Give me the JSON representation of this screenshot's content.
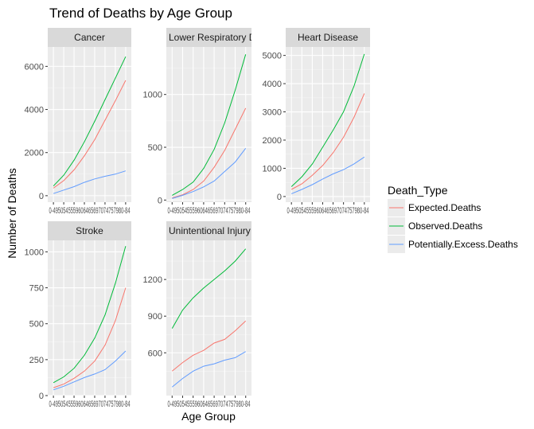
{
  "chart_data": {
    "type": "line",
    "title": "Trend of Deaths by Age Group",
    "xlabel": "Age Group",
    "ylabel": "Number of Deaths",
    "categories": [
      "0-49",
      "50-54",
      "55-59",
      "60-64",
      "65-69",
      "70-74",
      "75-79",
      "80-84"
    ],
    "legend": {
      "title": "Death_Type",
      "position": "right",
      "entries": [
        "Expected.Deaths",
        "Observed.Deaths",
        "Potentially.Excess.Deaths"
      ]
    },
    "colors": {
      "Expected.Deaths": "#F8766D",
      "Observed.Deaths": "#00BA38",
      "Potentially.Excess.Deaths": "#619CFF"
    },
    "x_tick_text": "0-4950545559606465697074757980-84",
    "grid": true,
    "panels": [
      {
        "name": "Cancer",
        "ylim": [
          -300,
          6900
        ],
        "yticks": [
          0,
          2000,
          4000,
          6000
        ],
        "series": [
          {
            "name": "Expected.Deaths",
            "values": [
              350,
              700,
              1200,
              1850,
              2600,
              3500,
              4400,
              5350
            ]
          },
          {
            "name": "Observed.Deaths",
            "values": [
              450,
              950,
              1650,
              2500,
              3450,
              4450,
              5450,
              6450
            ]
          },
          {
            "name": "Potentially.Excess.Deaths",
            "values": [
              100,
              260,
              420,
              620,
              780,
              900,
              1000,
              1150
            ]
          }
        ]
      },
      {
        "name": "Lower Respiratory D",
        "ylim": [
          -20,
          1450
        ],
        "yticks": [
          0,
          500,
          1000
        ],
        "series": [
          {
            "name": "Expected.Deaths",
            "values": [
              20,
              50,
              100,
              180,
              310,
              470,
              670,
              870
            ]
          },
          {
            "name": "Observed.Deaths",
            "values": [
              45,
              100,
              170,
              300,
              480,
              730,
              1040,
              1380
            ]
          },
          {
            "name": "Potentially.Excess.Deaths",
            "values": [
              15,
              45,
              80,
              125,
              180,
              270,
              360,
              490
            ]
          }
        ]
      },
      {
        "name": "Heart Disease",
        "ylim": [
          -200,
          5300
        ],
        "yticks": [
          0,
          1000,
          2000,
          3000,
          4000,
          5000
        ],
        "series": [
          {
            "name": "Expected.Deaths",
            "values": [
              250,
              450,
              750,
              1100,
              1550,
              2100,
              2800,
              3650
            ]
          },
          {
            "name": "Observed.Deaths",
            "values": [
              350,
              700,
              1150,
              1750,
              2350,
              3000,
              3900,
              5050
            ]
          },
          {
            "name": "Potentially.Excess.Deaths",
            "values": [
              100,
              250,
              420,
              620,
              800,
              950,
              1150,
              1400
            ]
          }
        ]
      },
      {
        "name": "Stroke",
        "ylim": [
          0,
          1080
        ],
        "yticks": [
          0,
          250,
          500,
          750,
          1000
        ],
        "series": [
          {
            "name": "Expected.Deaths",
            "values": [
              55,
              80,
              120,
              170,
              240,
              350,
              520,
              750
            ]
          },
          {
            "name": "Observed.Deaths",
            "values": [
              90,
              130,
              190,
              280,
              400,
              560,
              780,
              1040
            ]
          },
          {
            "name": "Potentially.Excess.Deaths",
            "values": [
              40,
              65,
              95,
              125,
              150,
              180,
              240,
              310
            ]
          }
        ]
      },
      {
        "name": "Unintentional Injury",
        "ylim": [
          250,
          1520
        ],
        "yticks": [
          600,
          900,
          1200
        ],
        "series": [
          {
            "name": "Expected.Deaths",
            "values": [
              450,
              520,
              580,
              620,
              680,
              710,
              780,
              860
            ]
          },
          {
            "name": "Observed.Deaths",
            "values": [
              800,
              950,
              1050,
              1130,
              1200,
              1270,
              1350,
              1450
            ]
          },
          {
            "name": "Potentially.Excess.Deaths",
            "values": [
              320,
              390,
              450,
              490,
              510,
              540,
              560,
              610
            ]
          }
        ]
      }
    ]
  }
}
